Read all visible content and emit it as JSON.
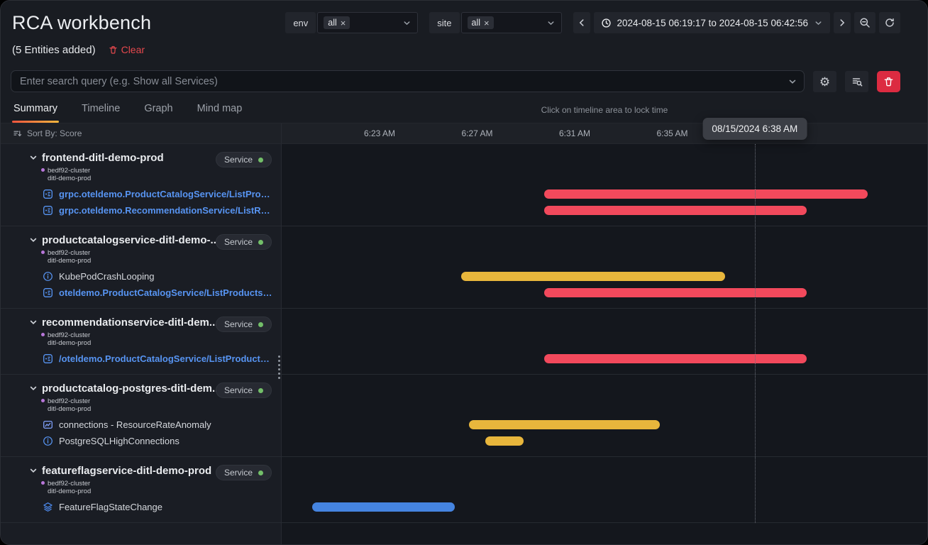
{
  "colors": {
    "red": "#f2495c",
    "yellow": "#e8b63c",
    "blue": "#4584e0"
  },
  "topbar": {
    "title": "RCA workbench",
    "env_label": "env",
    "env_value": "all",
    "site_label": "site",
    "site_value": "all",
    "time_range": "2024-08-15 06:19:17 to 2024-08-15 06:42:56"
  },
  "subheader": {
    "entities_added": "(5 Entities added)",
    "clear_label": "Clear"
  },
  "search": {
    "placeholder": "Enter search query (e.g. Show all Services)"
  },
  "tabs": [
    {
      "label": "Summary",
      "active": true
    },
    {
      "label": "Timeline",
      "active": false
    },
    {
      "label": "Graph",
      "active": false
    },
    {
      "label": "Mind map",
      "active": false
    }
  ],
  "timeline": {
    "hint": "Click on timeline area to lock time",
    "sort_label": "Sort By: Score",
    "tooltip": "08/15/2024 6:38 AM",
    "cursor_time": "06:38:23",
    "ticks": [
      {
        "label": "6:23 AM",
        "time": "06:23"
      },
      {
        "label": "6:27 AM",
        "time": "06:27"
      },
      {
        "label": "6:31 AM",
        "time": "06:31"
      },
      {
        "label": "6:35 AM",
        "time": "06:35"
      }
    ]
  },
  "rows": [
    {
      "name": "frontend-ditl-demo-prod",
      "badge": "Service",
      "cluster": "bedf92-cluster",
      "namespace": "ditl-demo-prod",
      "items": [
        {
          "icon": "trace",
          "link": true,
          "label": "grpc.oteldemo.ProductCatalogService/ListProducts ...",
          "bar": {
            "color": "red",
            "start": "06:29:45",
            "end": "06:43:00"
          }
        },
        {
          "icon": "trace",
          "link": true,
          "label": "grpc.oteldemo.RecommendationService/ListRecom...",
          "bar": {
            "color": "red",
            "start": "06:29:45",
            "end": "06:40:30"
          }
        }
      ]
    },
    {
      "name": "productcatalogservice-ditl-demo-...",
      "badge": "Service",
      "cluster": "bedf92-cluster",
      "namespace": "ditl-demo-prod",
      "items": [
        {
          "icon": "info",
          "link": false,
          "label": "KubePodCrashLooping",
          "bar": {
            "color": "yellow",
            "start": "06:26:20",
            "end": "06:37:10"
          }
        },
        {
          "icon": "trace",
          "link": true,
          "label": "oteldemo.ProductCatalogService/ListProducts - Erro...",
          "bar": {
            "color": "red",
            "start": "06:29:45",
            "end": "06:40:30"
          }
        }
      ]
    },
    {
      "name": "recommendationservice-ditl-dem...",
      "badge": "Service",
      "cluster": "bedf92-cluster",
      "namespace": "ditl-demo-prod",
      "items": [
        {
          "icon": "trace",
          "link": true,
          "label": "/oteldemo.ProductCatalogService/ListProducts - Err...",
          "bar": {
            "color": "red",
            "start": "06:29:45",
            "end": "06:40:30"
          }
        }
      ]
    },
    {
      "name": "productcatalog-postgres-ditl-dem...",
      "badge": "Service",
      "cluster": "bedf92-cluster",
      "namespace": "ditl-demo-prod",
      "items": [
        {
          "icon": "metric",
          "link": false,
          "label": "connections - ResourceRateAnomaly",
          "bar": {
            "color": "yellow",
            "start": "06:26:40",
            "end": "06:34:30"
          }
        },
        {
          "icon": "info",
          "link": false,
          "label": "PostgreSQLHighConnections",
          "bar": {
            "color": "yellow",
            "start": "06:27:20",
            "end": "06:28:55"
          }
        }
      ]
    },
    {
      "name": "featureflagservice-ditl-demo-prod",
      "badge": "Service",
      "cluster": "bedf92-cluster",
      "namespace": "ditl-demo-prod",
      "items": [
        {
          "icon": "layers",
          "link": false,
          "label": "FeatureFlagStateChange",
          "bar": {
            "color": "blue",
            "start": "06:20:15",
            "end": "06:26:05"
          }
        }
      ]
    }
  ]
}
